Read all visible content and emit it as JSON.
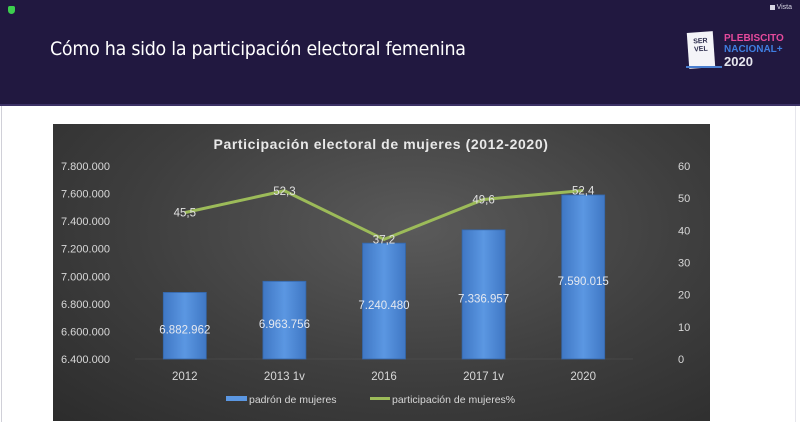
{
  "window": {
    "view_label": "Vista",
    "security_icon": "shield-check-icon"
  },
  "slide": {
    "title": "Cómo ha sido la participación electoral femenina",
    "logo": {
      "ballot_line1": "SER",
      "ballot_line2": "VEL",
      "text_line1": "PLEBISCITO",
      "text_line2": "NACIONAL+",
      "text_line3": "2020"
    }
  },
  "colors": {
    "header_bg": "#211840",
    "bar": "#4a86d6",
    "line": "#9cbb59"
  },
  "chart_data": {
    "type": "bar+line",
    "title": "Participación electoral de mujeres (2012-2020)",
    "categories": [
      "2012",
      "2013 1v",
      "2016",
      "2017 1v",
      "2020"
    ],
    "series": [
      {
        "name": "padrón de mujeres",
        "type": "bar",
        "axis": "left",
        "values": [
          6882962,
          6963756,
          7240480,
          7336957,
          7590015
        ],
        "labels": [
          "6.882.962",
          "6.963.756",
          "7.240.480",
          "7.336.957",
          "7.590.015"
        ]
      },
      {
        "name": "participación de mujeres%",
        "type": "line",
        "axis": "right",
        "values": [
          45.5,
          52.3,
          37.2,
          49.6,
          52.4
        ],
        "labels": [
          "45,5",
          "52,3",
          "37,2",
          "49,6",
          "52,4"
        ]
      }
    ],
    "y_left": {
      "min": 6400000,
      "max": 7800000,
      "ticks": [
        "6.400.000",
        "6.600.000",
        "6.800.000",
        "7.000.000",
        "7.200.000",
        "7.400.000",
        "7.600.000",
        "7.800.000"
      ]
    },
    "y_right": {
      "min": 0,
      "max": 60,
      "ticks": [
        "0",
        "10",
        "20",
        "30",
        "40",
        "50",
        "60"
      ]
    },
    "legend": [
      "padrón de mujeres",
      "participación de mujeres%"
    ],
    "legend_position": "bottom",
    "grid": false
  }
}
